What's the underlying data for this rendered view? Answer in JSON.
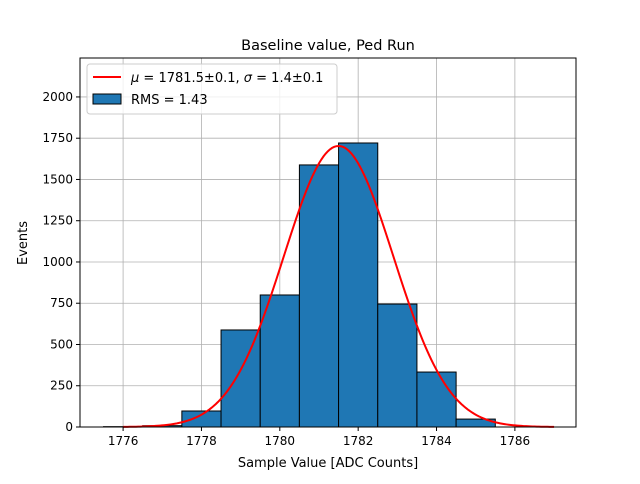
{
  "chart_data": {
    "type": "bar",
    "title": "Baseline value, Ped Run",
    "xlabel": "Sample Value [ADC Counts]",
    "ylabel": "Events",
    "xlim": [
      1774.9,
      1787.56
    ],
    "ylim": [
      0,
      2236
    ],
    "grid": true,
    "legend_placement": "top-left",
    "xticks": [
      1776,
      1778,
      1780,
      1782,
      1784,
      1786
    ],
    "yticks": [
      0,
      250,
      500,
      750,
      1000,
      1250,
      1500,
      1750,
      2000
    ],
    "bin_edges": [
      1775.5,
      1776.5,
      1777.5,
      1778.5,
      1779.5,
      1780.5,
      1781.5,
      1782.5,
      1783.5,
      1784.5,
      1785.5
    ],
    "values": [
      2,
      8,
      97,
      588,
      800,
      1588,
      1721,
      745,
      333,
      48
    ],
    "bar_color": "#1f77b4",
    "fit": {
      "name": "Gaussian fit",
      "mu": 1781.5,
      "sigma": 1.4,
      "amplitude": 1703,
      "x_range": [
        1776,
        1787
      ],
      "color": "#ff0000"
    },
    "legend": {
      "fit_label_mu": "μ",
      "fit_label_rest1": " = 1781.5±0.1, ",
      "fit_label_sigma": "σ",
      "fit_label_rest2": " = 1.4±0.1",
      "hist_label": "RMS = 1.43"
    }
  }
}
